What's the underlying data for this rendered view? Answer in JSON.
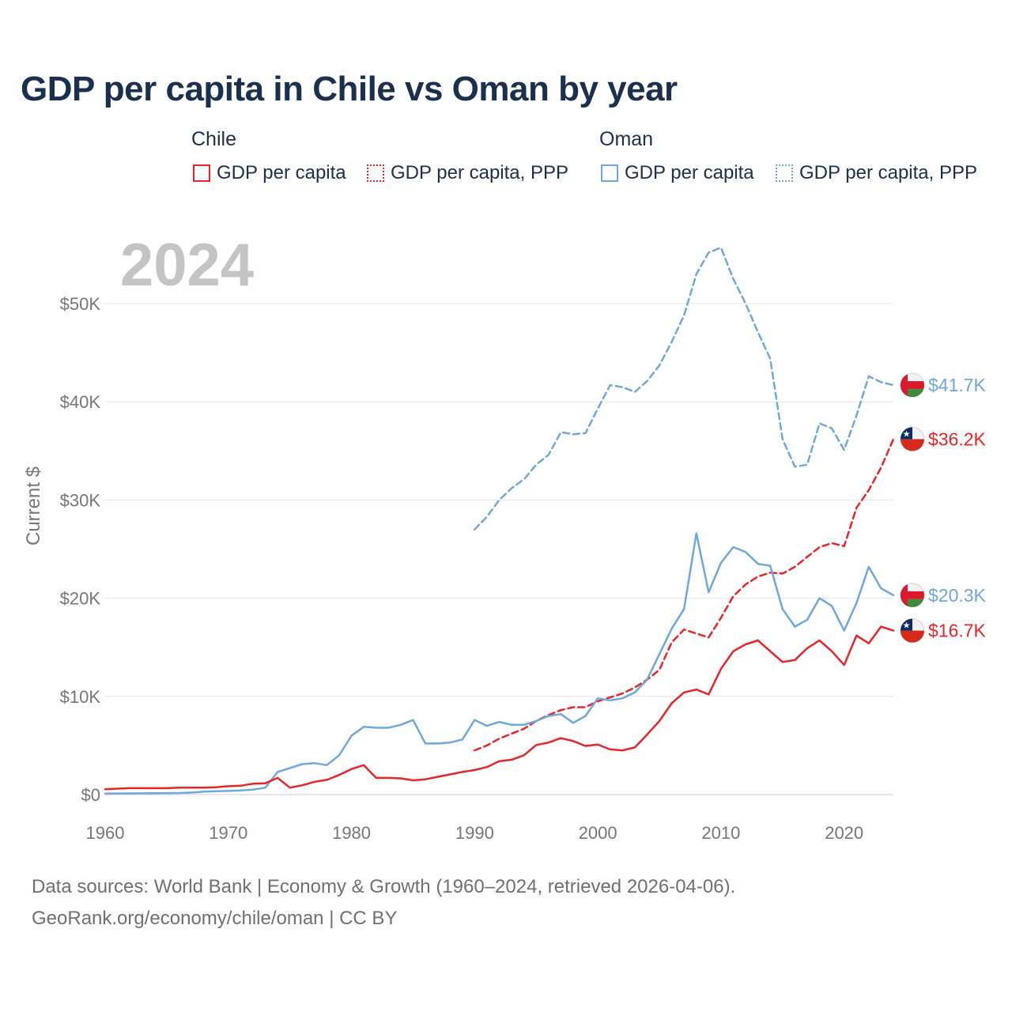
{
  "title": "GDP per capita in Chile vs Oman by year",
  "legend": {
    "groups": [
      {
        "name": "Chile",
        "items": [
          "GDP per capita",
          "GDP per capita, PPP"
        ]
      },
      {
        "name": "Oman",
        "items": [
          "GDP per capita",
          "GDP per capita, PPP"
        ]
      }
    ]
  },
  "year_label": "2024",
  "footer": {
    "line1": "Data sources: World Bank | Economy & Growth (1960–2024, retrieved 2026-04-06).",
    "line2": "GeoRank.org/economy/chile/oman | CC BY"
  },
  "colors": {
    "chile": "#e8262a",
    "oman": "#6fa8dc",
    "title": "#1b2f4f",
    "grid": "#e6e6e6",
    "axis": "#777777"
  },
  "chart_data": {
    "type": "line",
    "title": "GDP per capita in Chile vs Oman by year",
    "xlabel": "",
    "ylabel": "Current $",
    "xlim": [
      1960,
      2024
    ],
    "ylim": [
      0,
      50000
    ],
    "x_ticks": [
      1960,
      1970,
      1980,
      1990,
      2000,
      2010,
      2020
    ],
    "y_ticks": [
      0,
      10000,
      20000,
      30000,
      40000,
      50000
    ],
    "y_tick_labels": [
      "$0",
      "$10K",
      "$20K",
      "$30K",
      "$40K",
      "$50K"
    ],
    "series": [
      {
        "name": "Oman GDP per capita, PPP",
        "country": "Oman",
        "style": "dashed",
        "color": "#6fa8dc",
        "end_label": "$41.7K",
        "x": [
          1990,
          1991,
          1992,
          1993,
          1994,
          1995,
          1996,
          1997,
          1998,
          1999,
          2000,
          2001,
          2002,
          2003,
          2004,
          2005,
          2006,
          2007,
          2008,
          2009,
          2010,
          2011,
          2012,
          2013,
          2014,
          2015,
          2016,
          2017,
          2018,
          2019,
          2020,
          2021,
          2022,
          2023,
          2024
        ],
        "values": [
          27000,
          28300,
          30000,
          31200,
          32100,
          33600,
          34600,
          36900,
          36700,
          36800,
          39300,
          41700,
          41500,
          41000,
          42100,
          43700,
          46100,
          48800,
          53000,
          55200,
          55700,
          52500,
          50000,
          47100,
          44400,
          36200,
          33400,
          33600,
          37800,
          37300,
          35100,
          38600,
          42600,
          42000,
          41700
        ]
      },
      {
        "name": "Chile GDP per capita, PPP",
        "country": "Chile",
        "style": "dashed",
        "color": "#e8262a",
        "end_label": "$36.2K",
        "x": [
          1990,
          1991,
          1992,
          1993,
          1994,
          1995,
          1996,
          1997,
          1998,
          1999,
          2000,
          2001,
          2002,
          2003,
          2004,
          2005,
          2006,
          2007,
          2008,
          2009,
          2010,
          2011,
          2012,
          2013,
          2014,
          2015,
          2016,
          2017,
          2018,
          2019,
          2020,
          2021,
          2022,
          2023,
          2024
        ],
        "values": [
          4500,
          5000,
          5700,
          6200,
          6700,
          7500,
          8100,
          8600,
          8900,
          8900,
          9500,
          9900,
          10300,
          10900,
          11700,
          12700,
          15500,
          16800,
          16400,
          16000,
          18000,
          20200,
          21400,
          22200,
          22600,
          22500,
          23200,
          24200,
          25200,
          25600,
          25300,
          29200,
          31000,
          33300,
          36200
        ]
      },
      {
        "name": "Oman GDP per capita",
        "country": "Oman",
        "style": "solid",
        "color": "#6fa8dc",
        "end_label": "$20.3K",
        "x": [
          1960,
          1961,
          1962,
          1963,
          1964,
          1965,
          1966,
          1967,
          1968,
          1969,
          1970,
          1971,
          1972,
          1973,
          1974,
          1975,
          1976,
          1977,
          1978,
          1979,
          1980,
          1981,
          1982,
          1983,
          1984,
          1985,
          1986,
          1987,
          1988,
          1989,
          1990,
          1991,
          1992,
          1993,
          1994,
          1995,
          1996,
          1997,
          1998,
          1999,
          2000,
          2001,
          2002,
          2003,
          2004,
          2005,
          2006,
          2007,
          2008,
          2009,
          2010,
          2011,
          2012,
          2013,
          2014,
          2015,
          2016,
          2017,
          2018,
          2019,
          2020,
          2021,
          2022,
          2023,
          2024
        ],
        "values": [
          100,
          110,
          120,
          130,
          140,
          150,
          160,
          200,
          300,
          350,
          370,
          420,
          500,
          700,
          2300,
          2700,
          3100,
          3200,
          3000,
          4000,
          6000,
          6900,
          6800,
          6800,
          7100,
          7600,
          5200,
          5200,
          5300,
          5600,
          7600,
          7000,
          7400,
          7100,
          7100,
          7500,
          8000,
          8200,
          7300,
          8000,
          9800,
          9600,
          9800,
          10400,
          11700,
          14300,
          16900,
          18900,
          26600,
          20600,
          23600,
          25200,
          24700,
          23500,
          23300,
          18900,
          17100,
          17800,
          20000,
          19200,
          16700,
          19500,
          23200,
          21000,
          20300
        ]
      },
      {
        "name": "Chile GDP per capita",
        "country": "Chile",
        "style": "solid",
        "color": "#e8262a",
        "end_label": "$16.7K",
        "x": [
          1960,
          1961,
          1962,
          1963,
          1964,
          1965,
          1966,
          1967,
          1968,
          1969,
          1970,
          1971,
          1972,
          1973,
          1974,
          1975,
          1976,
          1977,
          1978,
          1979,
          1980,
          1981,
          1982,
          1983,
          1984,
          1985,
          1986,
          1987,
          1988,
          1989,
          1990,
          1991,
          1992,
          1993,
          1994,
          1995,
          1996,
          1997,
          1998,
          1999,
          2000,
          2001,
          2002,
          2003,
          2004,
          2005,
          2006,
          2007,
          2008,
          2009,
          2010,
          2011,
          2012,
          2013,
          2014,
          2015,
          2016,
          2017,
          2018,
          2019,
          2020,
          2021,
          2022,
          2023,
          2024
        ],
        "values": [
          550,
          600,
          650,
          650,
          650,
          650,
          700,
          700,
          700,
          750,
          850,
          900,
          1100,
          1150,
          1700,
          700,
          950,
          1300,
          1500,
          2000,
          2600,
          3000,
          1700,
          1700,
          1650,
          1450,
          1550,
          1800,
          2050,
          2300,
          2500,
          2800,
          3400,
          3550,
          4000,
          5050,
          5300,
          5750,
          5450,
          4950,
          5100,
          4600,
          4500,
          4800,
          6100,
          7500,
          9300,
          10400,
          10700,
          10200,
          12800,
          14600,
          15300,
          15700,
          14600,
          13500,
          13700,
          14900,
          15700,
          14600,
          13200,
          16200,
          15400,
          17100,
          16700
        ]
      }
    ]
  }
}
